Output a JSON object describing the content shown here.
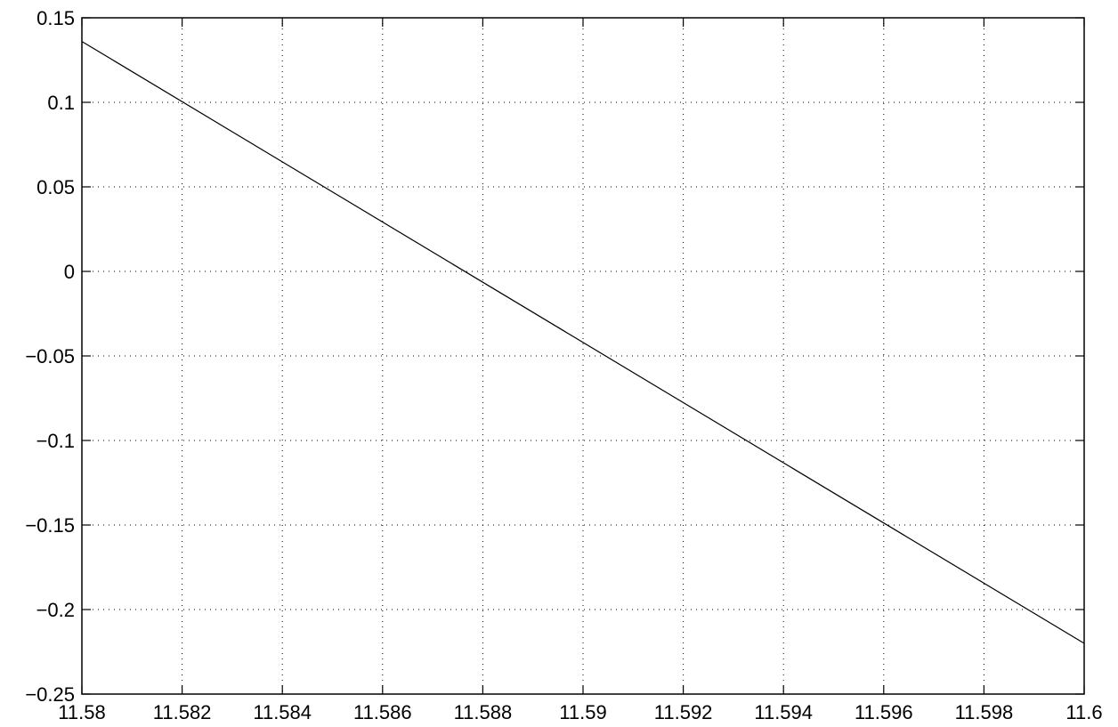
{
  "chart_data": {
    "type": "line",
    "title": "",
    "xlabel": "",
    "ylabel": "",
    "xlim": [
      11.58,
      11.6
    ],
    "ylim": [
      -0.25,
      0.15
    ],
    "grid": true,
    "x_ticks": [
      {
        "value": 11.58,
        "label": "11.58"
      },
      {
        "value": 11.582,
        "label": "11.582"
      },
      {
        "value": 11.584,
        "label": "11.584"
      },
      {
        "value": 11.586,
        "label": "11.586"
      },
      {
        "value": 11.588,
        "label": "11.588"
      },
      {
        "value": 11.59,
        "label": "11.59"
      },
      {
        "value": 11.592,
        "label": "11.592"
      },
      {
        "value": 11.594,
        "label": "11.594"
      },
      {
        "value": 11.596,
        "label": "11.596"
      },
      {
        "value": 11.598,
        "label": "11.598"
      },
      {
        "value": 11.6,
        "label": "11.6"
      }
    ],
    "y_ticks": [
      {
        "value": 0.15,
        "label": "0.15"
      },
      {
        "value": 0.1,
        "label": "0.1"
      },
      {
        "value": 0.05,
        "label": "0.05"
      },
      {
        "value": 0,
        "label": "0"
      },
      {
        "value": -0.05,
        "label": "−0.05"
      },
      {
        "value": -0.1,
        "label": "−0.1"
      },
      {
        "value": -0.15,
        "label": "−0.15"
      },
      {
        "value": -0.2,
        "label": "−0.2"
      },
      {
        "value": -0.25,
        "label": "−0.25"
      }
    ],
    "series": [
      {
        "color": "#000000",
        "x": [
          11.58,
          11.6
        ],
        "y": [
          0.136,
          -0.22
        ]
      }
    ]
  }
}
